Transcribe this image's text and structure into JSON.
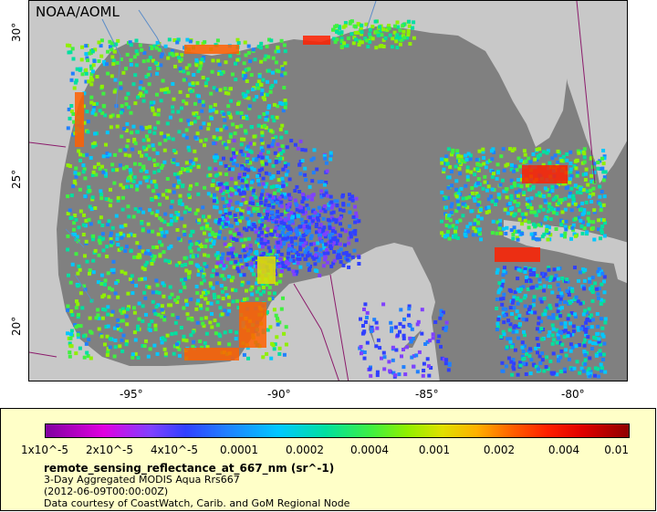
{
  "map": {
    "credit": "NOAA/AOML",
    "x_ticks": [
      "-95°",
      "-90°",
      "-85°",
      "-80°"
    ],
    "y_ticks": [
      "30°",
      "25°",
      "20°"
    ],
    "colors": {
      "water_nodata": "#808080",
      "land": "#c8c8c8",
      "rivers": "#5b8cc8",
      "borders": "#8b1a6b"
    }
  },
  "legend": {
    "colorbar_ticks": [
      "1x10^-5",
      "2x10^-5",
      "4x10^-5",
      "0.0001",
      "0.0002",
      "0.0004",
      "0.001",
      "0.002",
      "0.004",
      "0.01"
    ],
    "variable": "remote_sensing_reflectance_at_667_nm (sr^-1)",
    "product": "3-Day Aggregated MODIS Aqua Rrs667",
    "date": "(2012-06-09T00:00:00Z)",
    "courtesy": "Data courtesy of CoastWatch, Carib. and GoM Regional Node"
  }
}
